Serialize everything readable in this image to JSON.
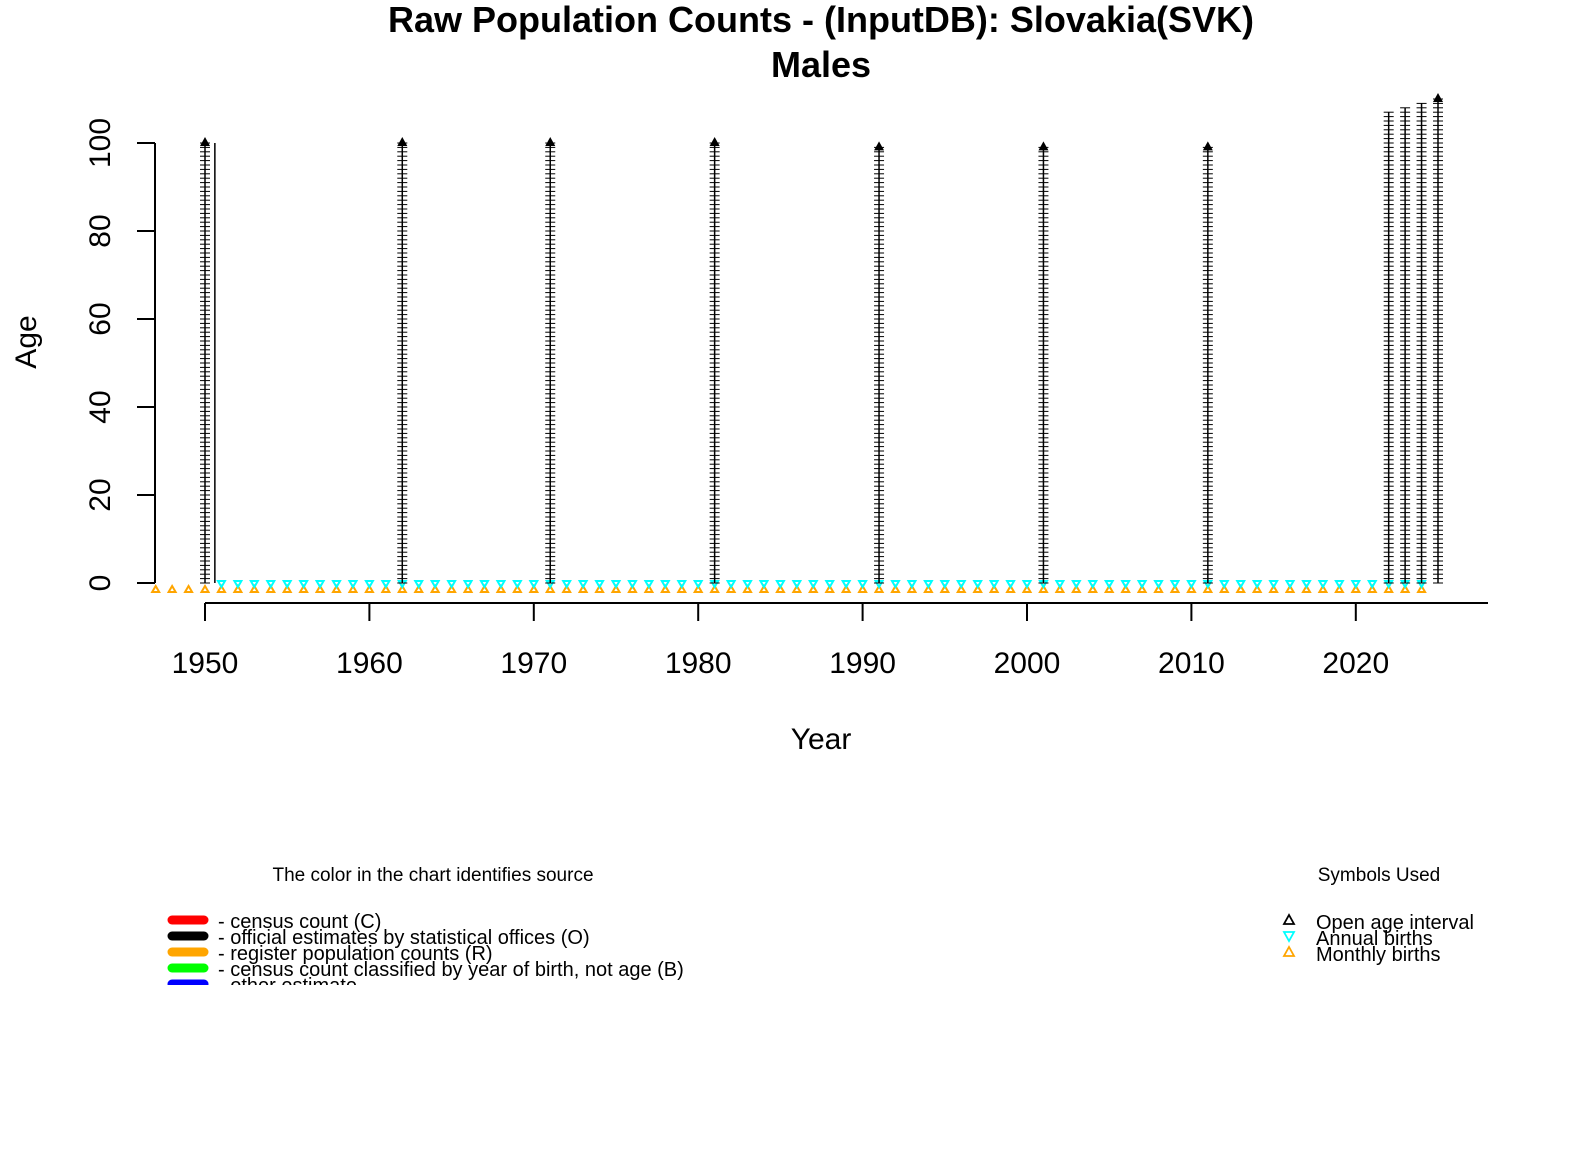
{
  "chart_data": {
    "type": "scatter",
    "title": "Raw Population Counts - (InputDB): Slovakia(SVK)",
    "subtitle": "Males",
    "xlabel": "Year",
    "ylabel": "Age",
    "xlim": [
      1947,
      2028
    ],
    "ylim": [
      0,
      110
    ],
    "x_ticks": [
      1950,
      1960,
      1970,
      1980,
      1990,
      2000,
      2010,
      2020
    ],
    "y_ticks": [
      0,
      20,
      40,
      60,
      80,
      100
    ],
    "grid": false,
    "age_columns": [
      {
        "year": 1950,
        "max_age": 100,
        "open_age": true,
        "color": "#000000"
      },
      {
        "year": 1962,
        "max_age": 100,
        "open_age": true,
        "color": "#000000"
      },
      {
        "year": 1971,
        "max_age": 100,
        "open_age": true,
        "color": "#000000"
      },
      {
        "year": 1981,
        "max_age": 100,
        "open_age": true,
        "color": "#000000"
      },
      {
        "year": 1991,
        "max_age": 99,
        "open_age": true,
        "color": "#000000"
      },
      {
        "year": 2001,
        "max_age": 99,
        "open_age": true,
        "color": "#000000"
      },
      {
        "year": 2011,
        "max_age": 99,
        "open_age": true,
        "color": "#000000"
      },
      {
        "year": 2022,
        "max_age": 107,
        "open_age": false,
        "color": "#000000"
      },
      {
        "year": 2023,
        "max_age": 108,
        "open_age": false,
        "color": "#000000"
      },
      {
        "year": 2024,
        "max_age": 109,
        "open_age": false,
        "color": "#000000"
      },
      {
        "year": 2025,
        "max_age": 110,
        "open_age": true,
        "color": "#000000"
      }
    ],
    "interval_lines": [
      {
        "year": 1950.6,
        "from_age": 0,
        "to_age": 100,
        "color": "#000000"
      }
    ],
    "annual_births": {
      "color": "#00FFFF",
      "from_year": 1951,
      "to_year": 2024
    },
    "monthly_births": {
      "color": "#FFA500",
      "from_year": 1947,
      "to_year": 2024
    },
    "legend_source": {
      "title": "The color in the chart identifies source",
      "placement": "bottom-left",
      "items": [
        {
          "label": "- census count (C)",
          "color": "#FF0000"
        },
        {
          "label": "- official estimates by statistical offices (O)",
          "color": "#000000"
        },
        {
          "label": "- register population counts (R)",
          "color": "#FFA500"
        },
        {
          "label": "- census count classified by year of birth, not age (B)",
          "color": "#00FF00"
        },
        {
          "label": "- other estimate",
          "color": "#0000FF"
        }
      ]
    },
    "legend_symbols": {
      "title": "Symbols Used",
      "placement": "bottom-right",
      "items": [
        {
          "label": "Open age interval",
          "symbol": "triangle-up",
          "color": "#000000"
        },
        {
          "label": "Annual births",
          "symbol": "triangle-down",
          "color": "#00FFFF"
        },
        {
          "label": "Monthly births",
          "symbol": "triangle-up",
          "color": "#FFA500"
        }
      ]
    }
  }
}
